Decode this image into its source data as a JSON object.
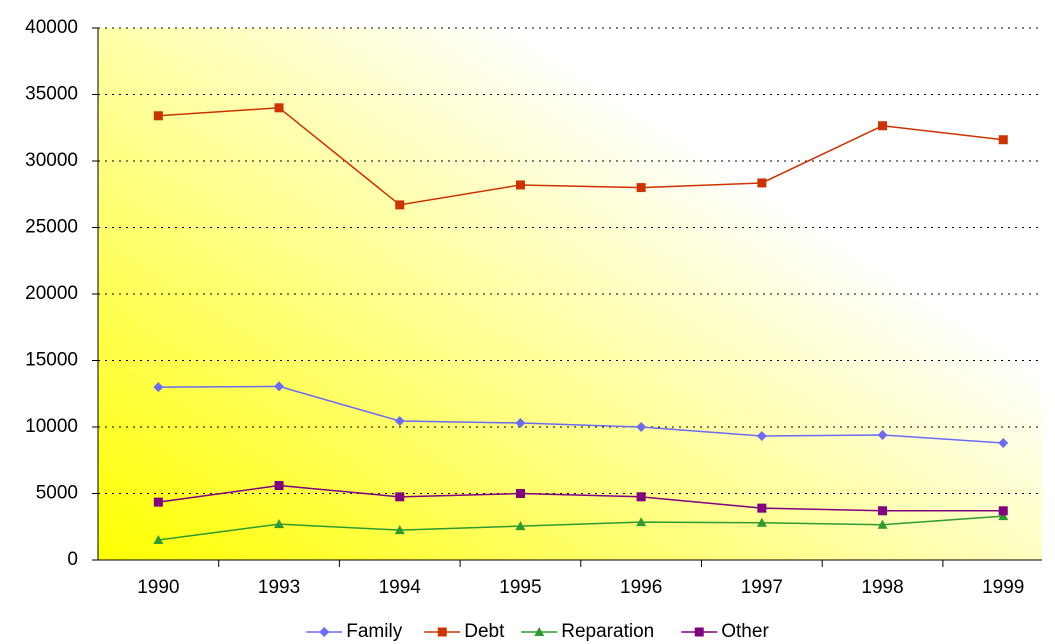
{
  "chart_data": {
    "type": "line",
    "categories": [
      "1990",
      "1993",
      "1994",
      "1995",
      "1996",
      "1997",
      "1998",
      "1999"
    ],
    "series": [
      {
        "name": "Family",
        "color": "#6b6bf5",
        "marker": "diamond",
        "values": [
          13000,
          13050,
          10450,
          10300,
          10000,
          9320,
          9400,
          8800
        ]
      },
      {
        "name": "Debt",
        "color": "#cc3300",
        "marker": "square",
        "values": [
          33400,
          34000,
          26700,
          28200,
          28000,
          28350,
          32650,
          31600
        ]
      },
      {
        "name": "Reparation",
        "color": "#2f9a2f",
        "marker": "triangle",
        "values": [
          1500,
          2700,
          2250,
          2550,
          2850,
          2800,
          2650,
          3300
        ]
      },
      {
        "name": "Other",
        "color": "#800080",
        "marker": "square",
        "values": [
          4350,
          5600,
          4750,
          5000,
          4750,
          3900,
          3700,
          3700
        ]
      }
    ],
    "ylim": [
      0,
      40000
    ],
    "yticks": [
      0,
      5000,
      10000,
      15000,
      20000,
      25000,
      30000,
      35000,
      40000
    ],
    "grid": true,
    "legend": "bottom"
  }
}
